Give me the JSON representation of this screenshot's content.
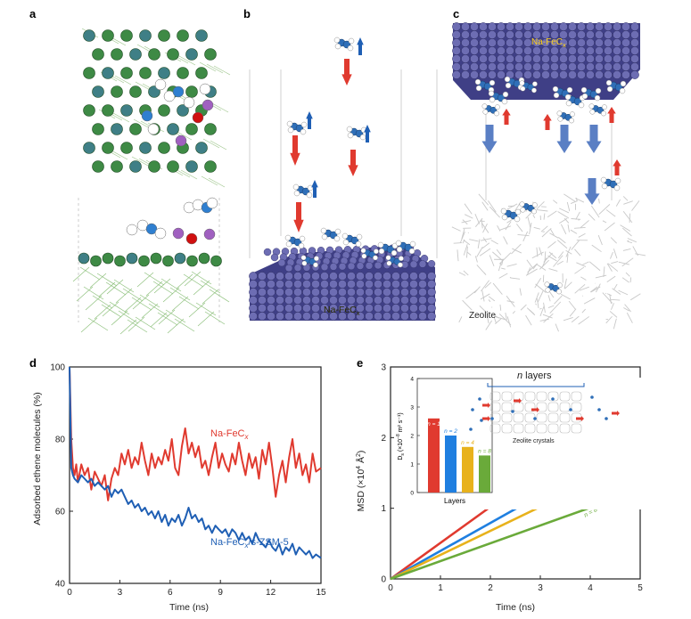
{
  "panels": {
    "a": {
      "letter": "a"
    },
    "b": {
      "letter": "b",
      "surface_label": "Na-FeC",
      "surface_sub": "x"
    },
    "c": {
      "letter": "c",
      "surface_label": "Na-FeC",
      "surface_sub": "x",
      "zeolite_label": "Zeolite"
    }
  },
  "colors": {
    "red": "#e03a2f",
    "blue": "#1f5fb4",
    "lattice": "#4a4a8f",
    "green": "#5aa03c",
    "yellow": "#e8b21c",
    "zeolite": "#c8c8c8"
  },
  "chart_data": [
    {
      "panel": "d",
      "letter": "d",
      "type": "line",
      "xlabel": "Time (ns)",
      "ylabel": "Adsorbed ethene molecules (%)",
      "xlim": [
        0,
        15
      ],
      "ylim": [
        40,
        100
      ],
      "xticks": [
        0,
        3,
        6,
        9,
        12,
        15
      ],
      "yticks": [
        40,
        60,
        80,
        100
      ],
      "series": [
        {
          "name": "Na-FeCx",
          "label_main": "Na-FeC",
          "label_sub": "x",
          "color": "#e03a2f",
          "x": [
            0,
            0.1,
            0.2,
            0.3,
            0.4,
            0.5,
            0.7,
            0.9,
            1.1,
            1.3,
            1.5,
            1.7,
            1.9,
            2.1,
            2.3,
            2.5,
            2.7,
            2.9,
            3.1,
            3.3,
            3.5,
            3.7,
            3.9,
            4.1,
            4.3,
            4.5,
            4.7,
            4.9,
            5.1,
            5.3,
            5.5,
            5.7,
            5.9,
            6.1,
            6.3,
            6.5,
            6.7,
            6.9,
            7.1,
            7.3,
            7.5,
            7.7,
            7.9,
            8.1,
            8.3,
            8.5,
            8.7,
            8.9,
            9.1,
            9.3,
            9.5,
            9.7,
            9.9,
            10.1,
            10.3,
            10.5,
            10.7,
            10.9,
            11.1,
            11.3,
            11.5,
            11.7,
            11.9,
            12.1,
            12.3,
            12.5,
            12.7,
            12.9,
            13.1,
            13.3,
            13.5,
            13.7,
            13.9,
            14.1,
            14.3,
            14.5,
            14.7,
            15
          ],
          "y": [
            100,
            80,
            72,
            70,
            73,
            68,
            73,
            70,
            72,
            66,
            71,
            69,
            67,
            70,
            63,
            69,
            72,
            70,
            76,
            73,
            77,
            72,
            75,
            73,
            79,
            74,
            70,
            76,
            72,
            75,
            73,
            77,
            74,
            80,
            72,
            70,
            78,
            83,
            76,
            79,
            75,
            78,
            72,
            74,
            70,
            75,
            79,
            72,
            76,
            73,
            71,
            76,
            73,
            79,
            74,
            70,
            76,
            72,
            75,
            69,
            77,
            73,
            79,
            72,
            64,
            70,
            74,
            68,
            75,
            80,
            72,
            76,
            70,
            73,
            68,
            76,
            71,
            72
          ]
        },
        {
          "name": "Na-FeCx/s-ZSM-5",
          "label_main": "Na-FeC",
          "label_sub": "x",
          "label_tail": "/s-ZSM-5",
          "color": "#1f5fb4",
          "x": [
            0,
            0.1,
            0.2,
            0.3,
            0.5,
            0.7,
            0.9,
            1.1,
            1.3,
            1.5,
            1.7,
            1.9,
            2.1,
            2.3,
            2.5,
            2.7,
            2.9,
            3.1,
            3.3,
            3.5,
            3.7,
            3.9,
            4.1,
            4.3,
            4.5,
            4.7,
            4.9,
            5.1,
            5.3,
            5.5,
            5.7,
            5.9,
            6.1,
            6.3,
            6.5,
            6.7,
            6.9,
            7.1,
            7.3,
            7.5,
            7.7,
            7.9,
            8.1,
            8.3,
            8.5,
            8.7,
            8.9,
            9.1,
            9.3,
            9.5,
            9.7,
            9.9,
            10.1,
            10.3,
            10.5,
            10.7,
            10.9,
            11.1,
            11.3,
            11.5,
            11.7,
            11.9,
            12.1,
            12.3,
            12.5,
            12.7,
            12.9,
            13.1,
            13.3,
            13.5,
            13.7,
            13.9,
            14.1,
            14.3,
            14.5,
            14.7,
            15
          ],
          "y": [
            100,
            72,
            70,
            69,
            68,
            70,
            69,
            68,
            69,
            67,
            68,
            67,
            66,
            67,
            64,
            66,
            65,
            66,
            64,
            62,
            63,
            61,
            62,
            60,
            61,
            59,
            60,
            58,
            60,
            57,
            59,
            56,
            58,
            57,
            59,
            56,
            58,
            61,
            58,
            59,
            57,
            58,
            55,
            56,
            54,
            56,
            55,
            54,
            55,
            53,
            55,
            54,
            52,
            54,
            52,
            53,
            51,
            54,
            52,
            51,
            50,
            52,
            50,
            49,
            51,
            48,
            50,
            49,
            51,
            48,
            50,
            49,
            48,
            49,
            47,
            48,
            47
          ]
        }
      ]
    },
    {
      "panel": "e",
      "letter": "e",
      "type": "line",
      "xlabel": "Time (ns)",
      "ylabel_main": "MSD (×10",
      "ylabel_sup": "4",
      "ylabel_tail": " Å",
      "ylabel_sup2": "2",
      "ylabel_end": ")",
      "xlim": [
        0,
        5
      ],
      "ylim": [
        0,
        3
      ],
      "xticks": [
        0,
        1,
        2,
        3,
        4,
        5
      ],
      "yticks": [
        0,
        1,
        2,
        3
      ],
      "series": [
        {
          "name": "n = 1",
          "color": "#e03a2f",
          "x": [
            0,
            5
          ],
          "y": [
            0,
            2.55
          ]
        },
        {
          "name": "n = 2",
          "color": "#1f7fe0",
          "x": [
            0,
            5
          ],
          "y": [
            0,
            1.98
          ]
        },
        {
          "name": "n = 4",
          "color": "#e8b21c",
          "x": [
            0,
            5
          ],
          "y": [
            0,
            1.7
          ]
        },
        {
          "name": "n = 8",
          "color": "#6aaa3a",
          "x": [
            0,
            5
          ],
          "y": [
            0,
            1.26
          ]
        }
      ],
      "inset": {
        "type": "bar",
        "xlabel": "Layers",
        "ylabel_main": "D",
        "ylabel_sub": "s",
        "ylabel_tail": " (×10",
        "ylabel_sup": "−8",
        "ylabel_end": " m² s⁻¹)",
        "ylim": [
          0,
          4
        ],
        "yticks": [
          0,
          1,
          2,
          3,
          4
        ],
        "categories": [
          "n = 1",
          "n = 2",
          "n = 4",
          "n = 8"
        ],
        "values": [
          2.6,
          2.0,
          1.6,
          1.3
        ],
        "colors": [
          "#e03a2f",
          "#1f7fe0",
          "#e8b21c",
          "#6aaa3a"
        ]
      },
      "schematic": {
        "title_italic": "n",
        "title_rest": " layers",
        "caption": "Zeolite crystals"
      }
    }
  ]
}
